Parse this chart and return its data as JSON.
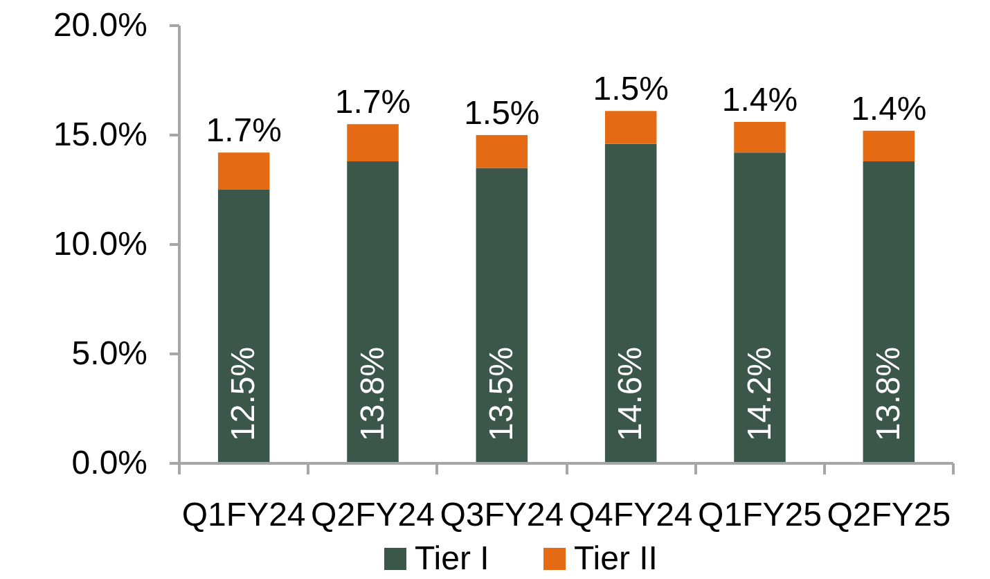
{
  "chart_data": {
    "type": "bar",
    "stacked": true,
    "categories": [
      "Q1FY24",
      "Q2FY24",
      "Q3FY24",
      "Q4FY24",
      "Q1FY25",
      "Q2FY25"
    ],
    "series": [
      {
        "name": "Tier I",
        "color": "#3b574a",
        "values": [
          12.5,
          13.8,
          13.5,
          14.6,
          14.2,
          13.8
        ],
        "value_labels": [
          "12.5%",
          "13.8%",
          "13.5%",
          "14.6%",
          "14.2%",
          "13.8%"
        ]
      },
      {
        "name": "Tier II",
        "color": "#e46b14",
        "values": [
          1.7,
          1.7,
          1.5,
          1.5,
          1.4,
          1.4
        ],
        "value_labels": [
          "1.7%",
          "1.7%",
          "1.5%",
          "1.5%",
          "1.4%",
          "1.4%"
        ]
      }
    ],
    "ylim": [
      0,
      20
    ],
    "yticks": [
      {
        "value": 0,
        "label": "0.0%"
      },
      {
        "value": 5,
        "label": "5.0%"
      },
      {
        "value": 10,
        "label": "10.0%"
      },
      {
        "value": 15,
        "label": "15.0%"
      },
      {
        "value": 20,
        "label": "20.0%"
      }
    ],
    "grid": false,
    "legend": "bottom"
  }
}
